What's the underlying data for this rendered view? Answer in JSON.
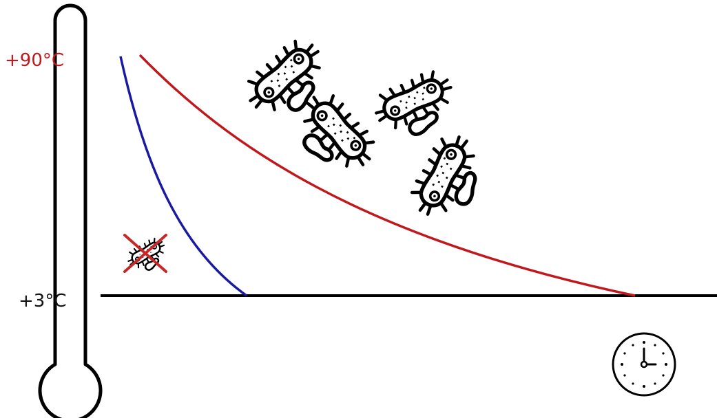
{
  "labels": {
    "high_temp": "+90°C",
    "low_temp": "+3°C"
  },
  "colors": {
    "high_temp": "#c0181d",
    "low_temp": "#111111",
    "fast_cooling_curve": "#1a1aa0",
    "slow_cooling_curve": "#c0181d",
    "cross_mark": "#c62828",
    "outline": "#000000"
  },
  "icons": {
    "thermometer": "thermometer-icon",
    "bacteria": "bacteria-icon",
    "crossed_bacteria": "crossed-out-bacteria-icon",
    "clock": "clock-icon"
  },
  "bacteria_count": 4
}
